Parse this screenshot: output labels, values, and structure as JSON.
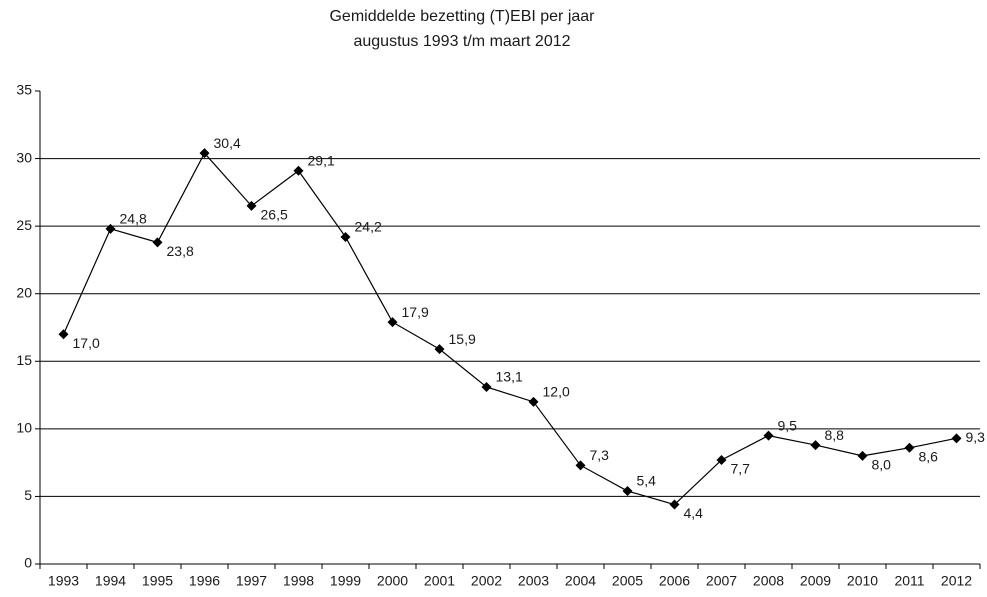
{
  "chart_data": {
    "type": "line",
    "title": "Gemiddelde bezetting (T)EBI per jaar",
    "subtitle": "augustus 1993 t/m maart 2012",
    "categories": [
      "1993",
      "1994",
      "1995",
      "1996",
      "1997",
      "1998",
      "1999",
      "2000",
      "2001",
      "2002",
      "2003",
      "2004",
      "2005",
      "2006",
      "2007",
      "2008",
      "2009",
      "2010",
      "2011",
      "2012"
    ],
    "values": [
      17.0,
      24.8,
      23.8,
      30.4,
      26.5,
      29.1,
      24.2,
      17.9,
      15.9,
      13.1,
      12.0,
      7.3,
      5.4,
      4.4,
      7.7,
      9.5,
      8.8,
      8.0,
      8.6,
      9.3
    ],
    "value_labels": [
      "17,0",
      "24,8",
      "23,8",
      "30,4",
      "26,5",
      "29,1",
      "24,2",
      "17,9",
      "15,9",
      "13,1",
      "12,0",
      "7,3",
      "5,4",
      "4,4",
      "7,7",
      "9,5",
      "8,8",
      "8,0",
      "8,6",
      "9,3"
    ],
    "color": "#000000",
    "ylim": [
      0,
      35
    ],
    "yticks": [
      0,
      5,
      10,
      15,
      20,
      25,
      30,
      35
    ],
    "grid": true
  }
}
